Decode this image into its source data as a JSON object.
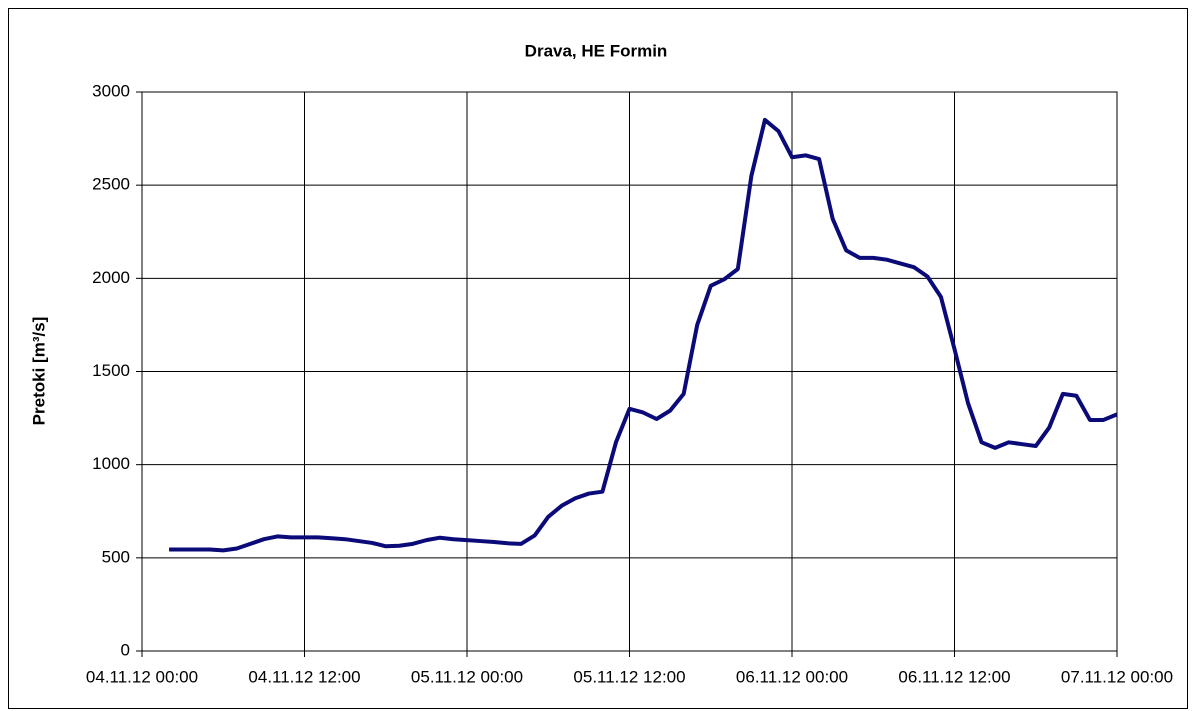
{
  "chart_data": {
    "type": "line",
    "title": "Drava, HE Formin",
    "y_label": "Pretoki [m³/s]",
    "x": [
      "2012-11-04T02:00",
      "2012-11-04T03:00",
      "2012-11-04T04:00",
      "2012-11-04T05:00",
      "2012-11-04T06:00",
      "2012-11-04T07:00",
      "2012-11-04T08:00",
      "2012-11-04T09:00",
      "2012-11-04T10:00",
      "2012-11-04T11:00",
      "2012-11-04T12:00",
      "2012-11-04T13:00",
      "2012-11-04T14:00",
      "2012-11-04T15:00",
      "2012-11-04T16:00",
      "2012-11-04T17:00",
      "2012-11-04T18:00",
      "2012-11-04T19:00",
      "2012-11-04T20:00",
      "2012-11-04T21:00",
      "2012-11-04T22:00",
      "2012-11-04T23:00",
      "2012-11-05T00:00",
      "2012-11-05T01:00",
      "2012-11-05T02:00",
      "2012-11-05T03:00",
      "2012-11-05T04:00",
      "2012-11-05T05:00",
      "2012-11-05T06:00",
      "2012-11-05T07:00",
      "2012-11-05T08:00",
      "2012-11-05T09:00",
      "2012-11-05T10:00",
      "2012-11-05T11:00",
      "2012-11-05T12:00",
      "2012-11-05T13:00",
      "2012-11-05T14:00",
      "2012-11-05T15:00",
      "2012-11-05T16:00",
      "2012-11-05T17:00",
      "2012-11-05T18:00",
      "2012-11-05T19:00",
      "2012-11-05T20:00",
      "2012-11-05T21:00",
      "2012-11-05T22:00",
      "2012-11-05T23:00",
      "2012-11-06T00:00",
      "2012-11-06T01:00",
      "2012-11-06T02:00",
      "2012-11-06T03:00",
      "2012-11-06T04:00",
      "2012-11-06T05:00",
      "2012-11-06T06:00",
      "2012-11-06T07:00",
      "2012-11-06T08:00",
      "2012-11-06T09:00",
      "2012-11-06T10:00",
      "2012-11-06T11:00",
      "2012-11-06T12:00",
      "2012-11-06T13:00",
      "2012-11-06T14:00",
      "2012-11-06T15:00",
      "2012-11-06T16:00",
      "2012-11-06T17:00",
      "2012-11-06T18:00",
      "2012-11-06T19:00",
      "2012-11-06T20:00",
      "2012-11-06T21:00",
      "2012-11-06T22:00",
      "2012-11-06T23:00",
      "2012-11-07T00:00"
    ],
    "series": [
      {
        "name": "Pretoki",
        "color": "#0a0a78",
        "values": [
          545,
          545,
          545,
          545,
          540,
          550,
          575,
          600,
          615,
          610,
          610,
          610,
          605,
          600,
          590,
          580,
          562,
          565,
          575,
          595,
          608,
          600,
          595,
          590,
          585,
          578,
          575,
          620,
          720,
          780,
          820,
          845,
          855,
          1120,
          1300,
          1280,
          1245,
          1290,
          1380,
          1750,
          1960,
          1995,
          2050,
          2550,
          2850,
          2790,
          2650,
          2660,
          2640,
          2320,
          2150,
          2110,
          2110,
          2100,
          2080,
          2060,
          2010,
          1900,
          1620,
          1330,
          1120,
          1090,
          1120,
          1110,
          1100,
          1200,
          1380,
          1370,
          1240,
          1240,
          1270
        ]
      }
    ],
    "xlim": [
      "2012-11-04T00:00",
      "2012-11-07T00:00"
    ],
    "xticks": [
      {
        "value": "2012-11-04T00:00",
        "label": "04.11.12 00:00"
      },
      {
        "value": "2012-11-04T12:00",
        "label": "04.11.12 12:00"
      },
      {
        "value": "2012-11-05T00:00",
        "label": "05.11.12 00:00"
      },
      {
        "value": "2012-11-05T12:00",
        "label": "05.11.12 12:00"
      },
      {
        "value": "2012-11-06T00:00",
        "label": "06.11.12 00:00"
      },
      {
        "value": "2012-11-06T12:00",
        "label": "06.11.12 12:00"
      },
      {
        "value": "2012-11-07T00:00",
        "label": "07.11.12 00:00"
      }
    ],
    "ylim": [
      0,
      3000
    ],
    "yticks": [
      0,
      500,
      1000,
      1500,
      2000,
      2500,
      3000
    ],
    "grid": true
  }
}
